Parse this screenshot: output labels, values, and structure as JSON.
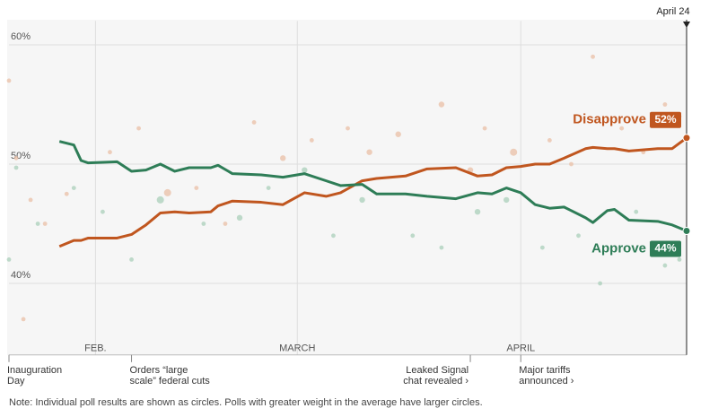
{
  "chart_data": {
    "type": "line",
    "note": "Note: Individual poll results are shown as circles. Polls with greater weight in the average have larger circles.",
    "end_date": "April 24",
    "xlim": [
      0,
      94
    ],
    "ylim": [
      34,
      62
    ],
    "yticks": [
      {
        "value": 40,
        "label": "40%"
      },
      {
        "value": 50,
        "label": "50%"
      },
      {
        "value": 60,
        "label": "60%"
      }
    ],
    "xticks": [
      {
        "value": 12,
        "label": "FEB."
      },
      {
        "value": 40,
        "label": "MARCH"
      },
      {
        "value": 71,
        "label": "APRIL"
      }
    ],
    "grid": true,
    "x": [
      7,
      9,
      10,
      11,
      15,
      17,
      19,
      21,
      23,
      25,
      28,
      29,
      31,
      35,
      38,
      41,
      44,
      46,
      49,
      51,
      55,
      58,
      62,
      65,
      67,
      69,
      71,
      73,
      75,
      77,
      80,
      81,
      83,
      84,
      86,
      90,
      92,
      94
    ],
    "series": [
      {
        "name": "Disapprove",
        "end_label": "52%",
        "color": "#c0561f",
        "values": [
          43.1,
          43.6,
          43.6,
          43.8,
          43.8,
          44.1,
          44.9,
          45.9,
          46.0,
          45.9,
          46.0,
          46.5,
          46.9,
          46.8,
          46.6,
          47.6,
          47.3,
          47.6,
          48.6,
          48.8,
          49.0,
          49.6,
          49.7,
          49.0,
          49.1,
          49.7,
          49.8,
          50.0,
          50.0,
          50.5,
          51.3,
          51.4,
          51.3,
          51.3,
          51.1,
          51.3,
          51.3,
          52.2
        ]
      },
      {
        "name": "Approve",
        "end_label": "44%",
        "color": "#2e7d57",
        "values": [
          51.9,
          51.6,
          50.3,
          50.1,
          50.2,
          49.4,
          49.5,
          50.0,
          49.4,
          49.7,
          49.7,
          49.9,
          49.2,
          49.1,
          48.9,
          49.2,
          48.6,
          48.2,
          48.3,
          47.5,
          47.5,
          47.3,
          47.1,
          47.6,
          47.5,
          48.0,
          47.6,
          46.6,
          46.3,
          46.4,
          45.5,
          45.1,
          46.1,
          46.2,
          45.3,
          45.2,
          44.9,
          44.4
        ]
      }
    ],
    "polls": [
      {
        "color": "#e9bfa6",
        "x": [
          0,
          1,
          2,
          3,
          5,
          8,
          14,
          18,
          22,
          26,
          30,
          34,
          38,
          42,
          47,
          50,
          54,
          60,
          64,
          66,
          70,
          75,
          78,
          81,
          85,
          88,
          91,
          93
        ],
        "values": [
          57,
          50.5,
          37,
          47,
          45,
          47.5,
          51,
          53,
          47.6,
          48,
          45,
          53.5,
          50.5,
          52,
          53,
          51,
          52.5,
          55,
          49.5,
          53,
          51,
          52,
          50,
          59,
          53,
          51,
          55,
          54
        ],
        "sizes": [
          3,
          3,
          3,
          3,
          3,
          3,
          3,
          3,
          5,
          3,
          3,
          3,
          4,
          3,
          3,
          4,
          4,
          4,
          4,
          3,
          5,
          3,
          3,
          3,
          3,
          3,
          3,
          3
        ]
      },
      {
        "color": "#a9cfba",
        "x": [
          0,
          1,
          4,
          9,
          13,
          17,
          21,
          27,
          32,
          36,
          41,
          45,
          49,
          56,
          60,
          65,
          69,
          74,
          79,
          82,
          87,
          91,
          93
        ],
        "values": [
          42,
          49.7,
          45,
          48,
          46,
          42,
          47,
          45,
          45.5,
          48,
          49.5,
          44,
          47,
          44,
          43,
          46,
          47,
          43,
          44,
          40,
          46,
          41.5,
          42
        ],
        "sizes": [
          3,
          3,
          3,
          3,
          3,
          3,
          5,
          3,
          4,
          3,
          4,
          3,
          4,
          3,
          3,
          4,
          4,
          3,
          3,
          3,
          3,
          3,
          3
        ]
      }
    ],
    "events": [
      {
        "x": 0,
        "lines": [
          "Inauguration",
          "Day"
        ]
      },
      {
        "x": 17,
        "lines": [
          "Orders “large",
          "scale” federal cuts"
        ]
      },
      {
        "x": 64,
        "lines": [
          "Leaked Signal",
          "chat revealed ›"
        ]
      },
      {
        "x": 71,
        "lines": [
          "Major tariffs",
          "announced ›"
        ]
      }
    ]
  }
}
